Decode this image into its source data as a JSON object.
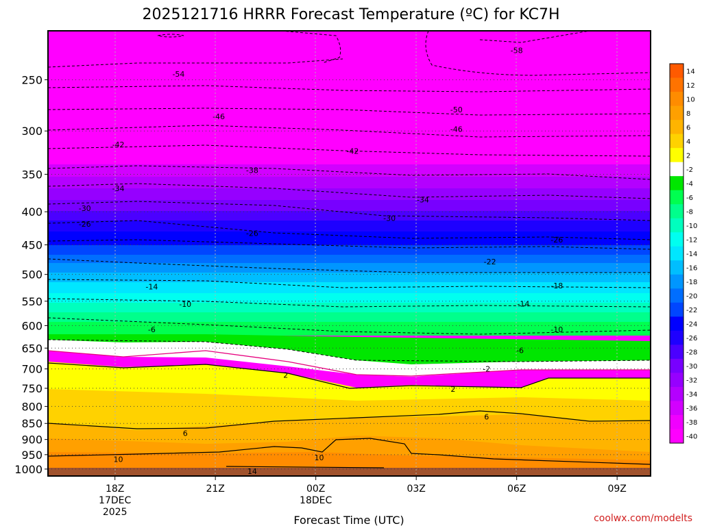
{
  "chart_data": {
    "type": "heatmap",
    "title": "2025121716 HRRR Forecast Temperature (ºC) for KC7H",
    "xlabel": "Forecast Time (UTC)",
    "ylabel": "",
    "credit": "coolwx.com/modelts",
    "x_ticks": [
      {
        "label": "18Z",
        "sub1": "17DEC",
        "sub2": "2025",
        "hour": 2
      },
      {
        "label": "21Z",
        "sub1": "",
        "sub2": "",
        "hour": 5
      },
      {
        "label": "00Z",
        "sub1": "18DEC",
        "sub2": "",
        "hour": 8
      },
      {
        "label": "03Z",
        "sub1": "",
        "sub2": "",
        "hour": 11
      },
      {
        "label": "06Z",
        "sub1": "",
        "sub2": "",
        "hour": 14
      },
      {
        "label": "09Z",
        "sub1": "",
        "sub2": "",
        "hour": 17
      }
    ],
    "xlim_hours": [
      0,
      18
    ],
    "y_scale": "log",
    "ylim": [
      1025,
      210
    ],
    "y_ticks": [
      250,
      300,
      350,
      400,
      450,
      500,
      550,
      600,
      650,
      700,
      750,
      800,
      850,
      900,
      950,
      1000
    ],
    "colorbar_levels": [
      14,
      12,
      10,
      8,
      6,
      4,
      2,
      -2,
      -4,
      -6,
      -8,
      -10,
      -12,
      -14,
      -16,
      -18,
      -20,
      -22,
      -24,
      -26,
      -28,
      -30,
      -32,
      -34,
      -36,
      -38,
      -40
    ],
    "colorbar_colors": [
      "#ff5a00",
      "#ff7300",
      "#ff8c00",
      "#ffa000",
      "#ffb400",
      "#ffd200",
      "#ffff00",
      "#ffffff",
      "#00e600",
      "#00ff50",
      "#00ff8c",
      "#00ffbe",
      "#00fff0",
      "#00e6ff",
      "#00beff",
      "#0096ff",
      "#006eff",
      "#0046ff",
      "#0000ff",
      "#1e00ff",
      "#4b00ff",
      "#7800ff",
      "#9600ff",
      "#b400ff",
      "#d200ff",
      "#f000ff",
      "#ff00ff"
    ],
    "contour_labels": [
      {
        "value": -58,
        "hour": 14,
        "p": 225
      },
      {
        "value": -54,
        "hour": 3.9,
        "p": 245
      },
      {
        "value": -50,
        "hour": 12.2,
        "p": 278
      },
      {
        "value": -46,
        "hour": 5.1,
        "p": 285
      },
      {
        "value": -46,
        "hour": 12.2,
        "p": 298
      },
      {
        "value": -42,
        "hour": 2.1,
        "p": 315
      },
      {
        "value": -42,
        "hour": 9.1,
        "p": 322
      },
      {
        "value": -38,
        "hour": 6.1,
        "p": 345
      },
      {
        "value": -34,
        "hour": 2.1,
        "p": 368
      },
      {
        "value": -34,
        "hour": 11.2,
        "p": 383
      },
      {
        "value": -30,
        "hour": 1.1,
        "p": 395
      },
      {
        "value": -30,
        "hour": 10.2,
        "p": 409
      },
      {
        "value": -26,
        "hour": 1.1,
        "p": 418
      },
      {
        "value": -26,
        "hour": 6.1,
        "p": 432
      },
      {
        "value": -26,
        "hour": 15.2,
        "p": 442
      },
      {
        "value": -22,
        "hour": 13.2,
        "p": 478
      },
      {
        "value": -18,
        "hour": 15.2,
        "p": 520
      },
      {
        "value": -14,
        "hour": 3.1,
        "p": 522
      },
      {
        "value": -14,
        "hour": 14.2,
        "p": 555
      },
      {
        "value": -10,
        "hour": 4.1,
        "p": 556
      },
      {
        "value": -10,
        "hour": 15.2,
        "p": 608
      },
      {
        "value": -6,
        "hour": 3.1,
        "p": 608
      },
      {
        "value": -6,
        "hour": 14.1,
        "p": 655
      },
      {
        "value": -2,
        "hour": 13.1,
        "p": 700
      },
      {
        "value": 2,
        "hour": 7.1,
        "p": 715
      },
      {
        "value": 2,
        "hour": 12.1,
        "p": 752
      },
      {
        "value": 6,
        "hour": 4.1,
        "p": 880
      },
      {
        "value": 6,
        "hour": 13.1,
        "p": 830
      },
      {
        "value": 10,
        "hour": 2.1,
        "p": 965
      },
      {
        "value": 10,
        "hour": 8.1,
        "p": 960
      },
      {
        "value": 14,
        "hour": 6.1,
        "p": 1008
      }
    ]
  }
}
